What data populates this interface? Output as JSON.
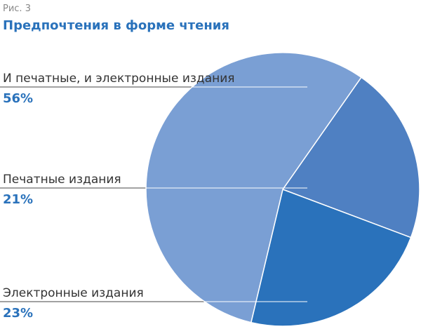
{
  "chart_data": {
    "type": "pie",
    "caption": "Рис. 3",
    "title": "Предпочтения в форме чтения",
    "categories": [
      "И печатные, и электронные издания",
      "Печатные издания",
      "Электронные издания"
    ],
    "values": [
      56,
      21,
      23
    ],
    "value_labels": [
      "56%",
      "21%",
      "23%"
    ],
    "colors": [
      "#7a9fd4",
      "#4f80c2",
      "#2a72bb"
    ]
  }
}
